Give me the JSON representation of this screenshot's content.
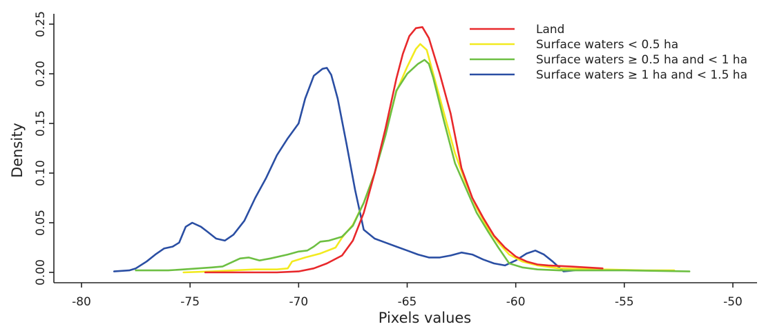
{
  "chart_data": {
    "type": "line",
    "xlabel": "Pixels values",
    "ylabel": "Density",
    "xlim": [
      -80,
      -50
    ],
    "ylim": [
      0,
      0.25
    ],
    "x_ticks": [
      -80,
      -75,
      -70,
      -65,
      -60,
      -55,
      -50
    ],
    "x_tick_labels": [
      "-80",
      "-75",
      "-70",
      "-65",
      "-60",
      "-55",
      "-50"
    ],
    "y_ticks": [
      0,
      0.05,
      0.1,
      0.15,
      0.2,
      0.25
    ],
    "y_tick_labels": [
      "0.00",
      "0.05",
      "0.10",
      "0.15",
      "0.20",
      "0.25"
    ],
    "grid": false,
    "legend_position": "top-right",
    "series": [
      {
        "name": "Land",
        "color": "#e8282b",
        "points": [
          [
            -74.3,
            0
          ],
          [
            -72,
            0
          ],
          [
            -71,
            0
          ],
          [
            -70,
            0.001
          ],
          [
            -69.3,
            0.004
          ],
          [
            -68.7,
            0.009
          ],
          [
            -68,
            0.017
          ],
          [
            -67.5,
            0.032
          ],
          [
            -67,
            0.06
          ],
          [
            -66.5,
            0.1
          ],
          [
            -66,
            0.145
          ],
          [
            -65.5,
            0.195
          ],
          [
            -65.2,
            0.22
          ],
          [
            -64.9,
            0.238
          ],
          [
            -64.6,
            0.246
          ],
          [
            -64.3,
            0.247
          ],
          [
            -64,
            0.236
          ],
          [
            -63.5,
            0.2
          ],
          [
            -63,
            0.16
          ],
          [
            -62.5,
            0.105
          ],
          [
            -62,
            0.075
          ],
          [
            -61.5,
            0.055
          ],
          [
            -61,
            0.037
          ],
          [
            -60.5,
            0.025
          ],
          [
            -60,
            0.016
          ],
          [
            -59.5,
            0.011
          ],
          [
            -59,
            0.008
          ],
          [
            -58.5,
            0.007
          ],
          [
            -57.5,
            0.006
          ],
          [
            -56,
            0.004
          ]
        ]
      },
      {
        "name": "Surface waters < 0.5 ha",
        "color": "#f2ea1f",
        "points": [
          [
            -75.3,
            0
          ],
          [
            -74,
            0.001
          ],
          [
            -73,
            0.002
          ],
          [
            -72,
            0.003
          ],
          [
            -71,
            0.003
          ],
          [
            -70.5,
            0.004
          ],
          [
            -70.3,
            0.011
          ],
          [
            -69.7,
            0.015
          ],
          [
            -69,
            0.019
          ],
          [
            -68.3,
            0.025
          ],
          [
            -68,
            0.035
          ],
          [
            -67.5,
            0.048
          ],
          [
            -67,
            0.07
          ],
          [
            -66.5,
            0.1
          ],
          [
            -66,
            0.14
          ],
          [
            -65.5,
            0.182
          ],
          [
            -65,
            0.207
          ],
          [
            -64.6,
            0.225
          ],
          [
            -64.4,
            0.23
          ],
          [
            -64.1,
            0.224
          ],
          [
            -63.8,
            0.2
          ],
          [
            -63.3,
            0.16
          ],
          [
            -62.8,
            0.12
          ],
          [
            -62.3,
            0.09
          ],
          [
            -61.8,
            0.065
          ],
          [
            -61.3,
            0.045
          ],
          [
            -60.8,
            0.03
          ],
          [
            -60.3,
            0.018
          ],
          [
            -59.7,
            0.011
          ],
          [
            -59,
            0.007
          ],
          [
            -58,
            0.004
          ],
          [
            -56,
            0.003
          ],
          [
            -54,
            0.002
          ],
          [
            -52.7,
            0.002
          ]
        ]
      },
      {
        "name": "Surface waters ≥ 0.5 ha and < 1 ha",
        "color": "#6dbf42",
        "points": [
          [
            -77.5,
            0.002
          ],
          [
            -76,
            0.002
          ],
          [
            -75.3,
            0.003
          ],
          [
            -74,
            0.005
          ],
          [
            -73.5,
            0.006
          ],
          [
            -73,
            0.011
          ],
          [
            -72.7,
            0.014
          ],
          [
            -72.3,
            0.015
          ],
          [
            -71.8,
            0.012
          ],
          [
            -71.3,
            0.014
          ],
          [
            -70.5,
            0.018
          ],
          [
            -70,
            0.021
          ],
          [
            -69.6,
            0.022
          ],
          [
            -69.3,
            0.026
          ],
          [
            -69,
            0.031
          ],
          [
            -68.6,
            0.032
          ],
          [
            -68,
            0.036
          ],
          [
            -67.5,
            0.047
          ],
          [
            -67,
            0.07
          ],
          [
            -66.5,
            0.1
          ],
          [
            -66,
            0.138
          ],
          [
            -65.5,
            0.183
          ],
          [
            -65,
            0.2
          ],
          [
            -64.5,
            0.21
          ],
          [
            -64.2,
            0.214
          ],
          [
            -64,
            0.21
          ],
          [
            -63.8,
            0.196
          ],
          [
            -63.3,
            0.152
          ],
          [
            -62.8,
            0.11
          ],
          [
            -62.3,
            0.085
          ],
          [
            -61.8,
            0.06
          ],
          [
            -61.3,
            0.042
          ],
          [
            -60.8,
            0.025
          ],
          [
            -60.3,
            0.009
          ],
          [
            -59.7,
            0.005
          ],
          [
            -59,
            0.003
          ],
          [
            -58,
            0.002
          ],
          [
            -55,
            0.002
          ],
          [
            -52,
            0.001
          ]
        ]
      },
      {
        "name": "Surface waters ≥ 1 ha and < 1.5 ha",
        "color": "#2a4ea3",
        "points": [
          [
            -78.5,
            0.001
          ],
          [
            -77.8,
            0.002
          ],
          [
            -77.5,
            0.004
          ],
          [
            -77,
            0.011
          ],
          [
            -76.6,
            0.018
          ],
          [
            -76.2,
            0.024
          ],
          [
            -75.8,
            0.026
          ],
          [
            -75.5,
            0.03
          ],
          [
            -75.2,
            0.046
          ],
          [
            -74.9,
            0.05
          ],
          [
            -74.5,
            0.046
          ],
          [
            -74.2,
            0.041
          ],
          [
            -73.8,
            0.034
          ],
          [
            -73.4,
            0.032
          ],
          [
            -73,
            0.038
          ],
          [
            -72.5,
            0.052
          ],
          [
            -72,
            0.075
          ],
          [
            -71.5,
            0.095
          ],
          [
            -71,
            0.118
          ],
          [
            -70.5,
            0.135
          ],
          [
            -70,
            0.15
          ],
          [
            -69.7,
            0.175
          ],
          [
            -69.3,
            0.198
          ],
          [
            -68.9,
            0.205
          ],
          [
            -68.7,
            0.206
          ],
          [
            -68.5,
            0.199
          ],
          [
            -68.2,
            0.175
          ],
          [
            -67.8,
            0.13
          ],
          [
            -67.4,
            0.083
          ],
          [
            -67,
            0.043
          ],
          [
            -66.5,
            0.034
          ],
          [
            -66,
            0.03
          ],
          [
            -65.5,
            0.026
          ],
          [
            -65,
            0.022
          ],
          [
            -64.5,
            0.018
          ],
          [
            -64,
            0.015
          ],
          [
            -63.5,
            0.015
          ],
          [
            -63,
            0.017
          ],
          [
            -62.5,
            0.02
          ],
          [
            -62,
            0.018
          ],
          [
            -61.5,
            0.013
          ],
          [
            -61,
            0.009
          ],
          [
            -60.5,
            0.007
          ],
          [
            -60,
            0.012
          ],
          [
            -59.5,
            0.019
          ],
          [
            -59.1,
            0.022
          ],
          [
            -58.7,
            0.018
          ],
          [
            -58.3,
            0.011
          ],
          [
            -57.8,
            0.001
          ],
          [
            -57.3,
            0.002
          ]
        ]
      }
    ]
  }
}
